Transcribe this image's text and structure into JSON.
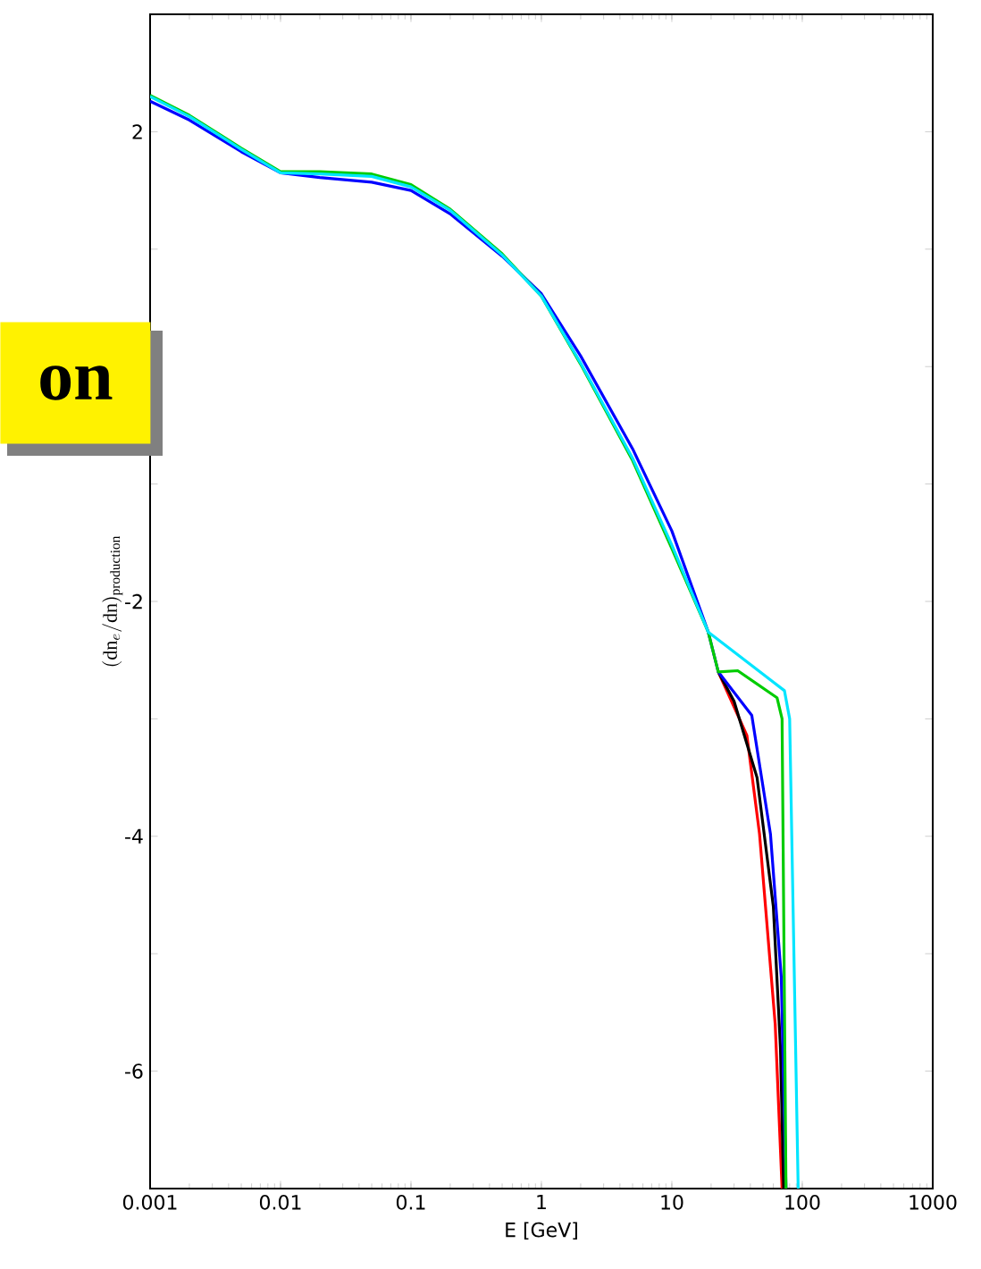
{
  "chart_data": {
    "type": "line",
    "xlabel": "E [GeV]",
    "ylabel": "(\\mathrm{dn}_{e}/\\mathrm{dn})_{\\mathrm{production}}",
    "log": "x",
    "xlim": [
      0.001,
      1000
    ],
    "xticks": [
      0.001,
      0.01,
      0.1,
      1,
      10,
      100,
      1000
    ],
    "ylim": [
      -7,
      3
    ],
    "yticks": [
      -6,
      {
        "value": -5,
        "label": null
      },
      -4,
      {
        "value": -3,
        "label": null
      },
      -2,
      {
        "value": -1,
        "label": null
      },
      {
        "value": 0,
        "label": null
      },
      {
        "value": 1,
        "label": null
      },
      2
    ],
    "marker": "none",
    "line_style": "solid",
    "annotations": [
      "on"
    ],
    "series": [
      {
        "color": "#ff0000",
        "x": [
          22.7,
          37.6,
          47,
          62,
          70
        ],
        "values": [
          -2.6,
          -3.14,
          -3.98,
          -5.6,
          -7
        ]
      },
      {
        "color": "#000000",
        "x": [
          22.7,
          30,
          45,
          60,
          68,
          72
        ],
        "values": [
          -2.6,
          -2.85,
          -3.5,
          -4.6,
          -5.8,
          -7
        ]
      },
      {
        "color": "#0000ff",
        "x": [
          0.001,
          0.002,
          0.005,
          0.01,
          0.02,
          0.05,
          0.1,
          0.2,
          0.5,
          1,
          2,
          5,
          10,
          19,
          22.7,
          41,
          57,
          69,
          75
        ],
        "values": [
          2.26,
          2.1,
          1.83,
          1.65,
          1.61,
          1.57,
          1.5,
          1.3,
          0.94,
          0.62,
          0.09,
          -0.7,
          -1.4,
          -2.26,
          -2.6,
          -2.97,
          -3.98,
          -5.2,
          -7
        ]
      },
      {
        "color": "#00cc00",
        "x": [
          0.001,
          0.002,
          0.005,
          0.01,
          0.02,
          0.05,
          0.1,
          0.2,
          0.5,
          1,
          2,
          5,
          10,
          19,
          22.7,
          32,
          64,
          70,
          75
        ],
        "values": [
          2.31,
          2.14,
          1.86,
          1.66,
          1.66,
          1.64,
          1.55,
          1.34,
          0.96,
          0.6,
          0.02,
          -0.8,
          -1.55,
          -2.26,
          -2.6,
          -2.59,
          -2.82,
          -3.0,
          -7
        ]
      },
      {
        "color": "#00e5ff",
        "x": [
          0.001,
          0.002,
          0.005,
          0.01,
          0.02,
          0.05,
          0.1,
          0.2,
          0.5,
          1,
          2,
          5,
          10,
          19,
          73,
          80,
          93
        ],
        "values": [
          2.3,
          2.13,
          1.85,
          1.65,
          1.64,
          1.62,
          1.53,
          1.33,
          0.95,
          0.6,
          0.03,
          -0.78,
          -1.52,
          -2.26,
          -2.76,
          -3.0,
          -7
        ]
      }
    ]
  }
}
